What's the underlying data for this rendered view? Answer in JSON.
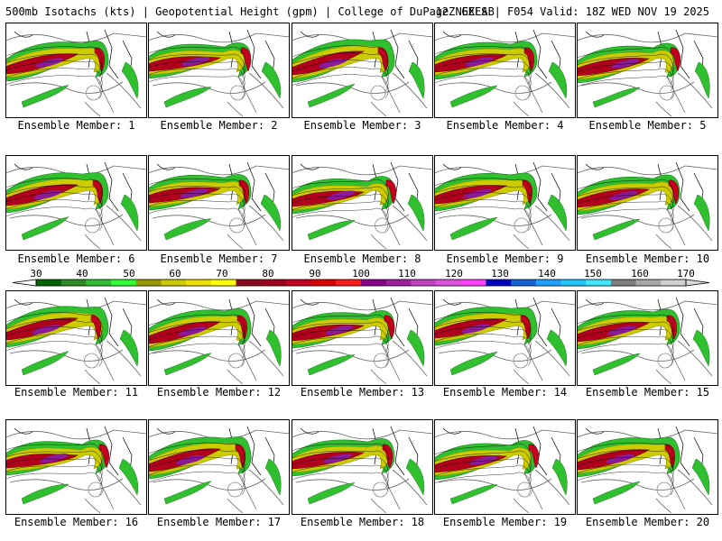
{
  "header": {
    "left": "500mb Isotachs (kts) | Geopotential Height (gpm) | College of DuPage NEXLAB",
    "right": "12Z GEFS | F054 Valid: 18Z WED NOV 19 2025"
  },
  "members": [
    {
      "label": "Ensemble Member: 1"
    },
    {
      "label": "Ensemble Member: 2"
    },
    {
      "label": "Ensemble Member: 3"
    },
    {
      "label": "Ensemble Member: 4"
    },
    {
      "label": "Ensemble Member: 5"
    },
    {
      "label": "Ensemble Member: 6"
    },
    {
      "label": "Ensemble Member: 7"
    },
    {
      "label": "Ensemble Member: 8"
    },
    {
      "label": "Ensemble Member: 9"
    },
    {
      "label": "Ensemble Member: 10"
    },
    {
      "label": "Ensemble Member: 11"
    },
    {
      "label": "Ensemble Member: 12"
    },
    {
      "label": "Ensemble Member: 13"
    },
    {
      "label": "Ensemble Member: 14"
    },
    {
      "label": "Ensemble Member: 15"
    },
    {
      "label": "Ensemble Member: 16"
    },
    {
      "label": "Ensemble Member: 17"
    },
    {
      "label": "Ensemble Member: 18"
    },
    {
      "label": "Ensemble Member: 19"
    },
    {
      "label": "Ensemble Member: 20"
    }
  ],
  "colorbar": {
    "ticks": [
      "30",
      "40",
      "50",
      "60",
      "70",
      "80",
      "90",
      "100",
      "110",
      "120",
      "130",
      "140",
      "150",
      "160",
      "170"
    ],
    "colors": [
      "#006400",
      "#2e8b22",
      "#2fbf2f",
      "#30ff30",
      "#999900",
      "#cccc00",
      "#f0e000",
      "#ffff00",
      "#8b0a20",
      "#a00020",
      "#c4001e",
      "#dd0000",
      "#ff1a1a",
      "#8b008b",
      "#a020a0",
      "#c040c0",
      "#e050e0",
      "#ff40ff",
      "#0000c0",
      "#1464d8",
      "#1ea0ff",
      "#1ec8ff",
      "#40e8ff",
      "#808080",
      "#a8a8a8",
      "#d0d0d0"
    ]
  }
}
